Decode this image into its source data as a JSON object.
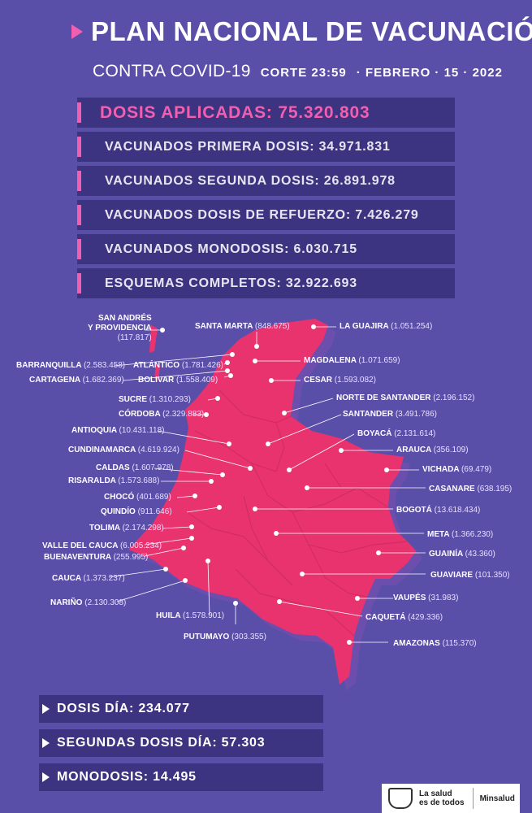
{
  "header": {
    "title": "PLAN NACIONAL DE VACUNACIÓN",
    "subtitle_covid": "CONTRA COVID-19",
    "corte": "CORTE 23:59",
    "fecha": "· FEBRERO · 15 · 2022"
  },
  "stats": [
    {
      "label": "DOSIS APLICADAS: 75.320.803",
      "highlight": true
    },
    {
      "label": "VACUNADOS PRIMERA DOSIS: 34.971.831",
      "highlight": false
    },
    {
      "label": "VACUNADOS SEGUNDA DOSIS: 26.891.978",
      "highlight": false
    },
    {
      "label": "VACUNADOS  DOSIS DE REFUERZO: 7.426.279",
      "highlight": false
    },
    {
      "label": "VACUNADOS MONODOSIS: 6.030.715",
      "highlight": false
    },
    {
      "label": "ESQUEMAS COMPLETOS: 32.922.693",
      "highlight": false
    }
  ],
  "departments": [
    {
      "name": "SAN ANDRÉS\nY PROVIDENCIA",
      "value": "(117.817)"
    },
    {
      "name": "SANTA MARTA",
      "value": "(848.675)"
    },
    {
      "name": "LA GUAJIRA",
      "value": "(1.051.254)"
    },
    {
      "name": "BARRANQUILLA",
      "value": "(2.583.458)"
    },
    {
      "name": "ATLÁNTICO",
      "value": "(1.781.426)"
    },
    {
      "name": "MAGDALENA",
      "value": "(1.071.659)"
    },
    {
      "name": "CARTAGENA",
      "value": "(1.682.369)"
    },
    {
      "name": "BOLIVAR",
      "value": "(1.558.409)"
    },
    {
      "name": "CESAR",
      "value": "(1.593.082)"
    },
    {
      "name": "SUCRE",
      "value": "(1.310.293)"
    },
    {
      "name": "NORTE DE SANTANDER",
      "value": "(2.196.152)"
    },
    {
      "name": "CÓRDOBA",
      "value": "(2.329.883)"
    },
    {
      "name": "SANTANDER",
      "value": "(3.491.786)"
    },
    {
      "name": "ANTIOQUIA",
      "value": "(10.431.118)"
    },
    {
      "name": "BOYACÁ",
      "value": "(2.131.614)"
    },
    {
      "name": "CUNDINAMARCA",
      "value": "(4.619.924)"
    },
    {
      "name": "ARAUCA",
      "value": "(356.109)"
    },
    {
      "name": "CALDAS",
      "value": "(1.607.978)"
    },
    {
      "name": "VICHADA",
      "value": "(69.479)"
    },
    {
      "name": "RISARALDA",
      "value": "(1.573.688)"
    },
    {
      "name": "CASANARE",
      "value": "(638.195)"
    },
    {
      "name": "CHOCÓ",
      "value": "(401.689)"
    },
    {
      "name": "QUINDÍO",
      "value": "(911.646)"
    },
    {
      "name": "BOGOTÁ",
      "value": "(13.618.434)"
    },
    {
      "name": "TOLIMA",
      "value": "(2.174.298)"
    },
    {
      "name": "META",
      "value": "(1.366.230)"
    },
    {
      "name": "VALLE DEL CAUCA",
      "value": "(6.005.234)"
    },
    {
      "name": "BUENAVENTURA",
      "value": "(255.995)"
    },
    {
      "name": "GUAINÍA",
      "value": "(43.360)"
    },
    {
      "name": "CAUCA",
      "value": "(1.373.237)"
    },
    {
      "name": "GUAVIARE",
      "value": "(101.350)"
    },
    {
      "name": "VAUPÉS",
      "value": "(31.983)"
    },
    {
      "name": "NARIÑO",
      "value": "(2.130.308)"
    },
    {
      "name": "HUILA",
      "value": "(1.578.901)"
    },
    {
      "name": "CAQUETÁ",
      "value": "(429.336)"
    },
    {
      "name": "PUTUMAYO",
      "value": "(303.355)"
    },
    {
      "name": "AMAZONAS",
      "value": "(115.370)"
    }
  ],
  "daily": [
    {
      "label": "DOSIS DÍA:  234.077"
    },
    {
      "label": "SEGUNDAS DOSIS DÍA: 57.303"
    },
    {
      "label": "MONODOSIS: 14.495"
    }
  ],
  "footer": {
    "slogan_line1": "La salud",
    "slogan_line2": "es de todos",
    "ministry": "Minsalud"
  },
  "colors": {
    "background": "#5a4fa8",
    "box": "#3c3480",
    "accent_pink": "#f25fb0",
    "map_fill": "#e8336f"
  }
}
